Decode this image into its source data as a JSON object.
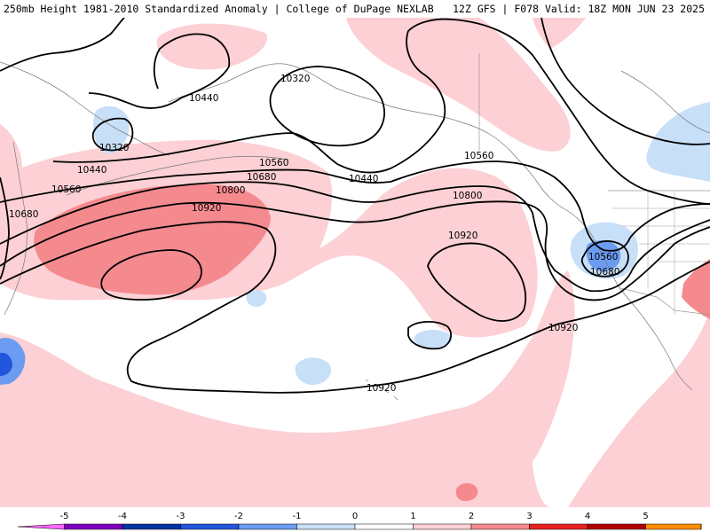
{
  "header": {
    "left": "250mb Height 1981-2010 Standardized Anomaly | College of DuPage NEXLAB",
    "right": "12Z GFS | F078 Valid: 18Z MON JUN 23 2025"
  },
  "contours": [
    {
      "id": "c10320a",
      "label": "10320"
    },
    {
      "id": "c10320b",
      "label": "10320"
    },
    {
      "id": "c10440a",
      "label": "10440"
    },
    {
      "id": "c10440b",
      "label": "10440"
    },
    {
      "id": "c10440c",
      "label": "10440"
    },
    {
      "id": "c10560a",
      "label": "10560"
    },
    {
      "id": "c10560b",
      "label": "10560"
    },
    {
      "id": "c10560c",
      "label": "10560"
    },
    {
      "id": "c10560d",
      "label": "10560"
    },
    {
      "id": "c10680a",
      "label": "10680"
    },
    {
      "id": "c10680b",
      "label": "10680"
    },
    {
      "id": "c10680c",
      "label": "10680"
    },
    {
      "id": "c10800a",
      "label": "10800"
    },
    {
      "id": "c10800b",
      "label": "10800"
    },
    {
      "id": "c10920a",
      "label": "10920"
    },
    {
      "id": "c10920b",
      "label": "10920"
    },
    {
      "id": "c10920c",
      "label": "10920"
    },
    {
      "id": "c10920d",
      "label": "10920"
    }
  ],
  "colorbar": {
    "ticks": [
      "-5",
      "-4",
      "-3",
      "-2",
      "-1",
      "0",
      "1",
      "2",
      "3",
      "4",
      "5"
    ],
    "colors": [
      "#ff66ff",
      "#8000c0",
      "#0033a0",
      "#2255dd",
      "#6c9cf2",
      "#c8dff8",
      "#ffffff",
      "#fcd0d4",
      "#f58a8e",
      "#e82020",
      "#b00000",
      "#ff8c00",
      "#ffd040"
    ]
  }
}
